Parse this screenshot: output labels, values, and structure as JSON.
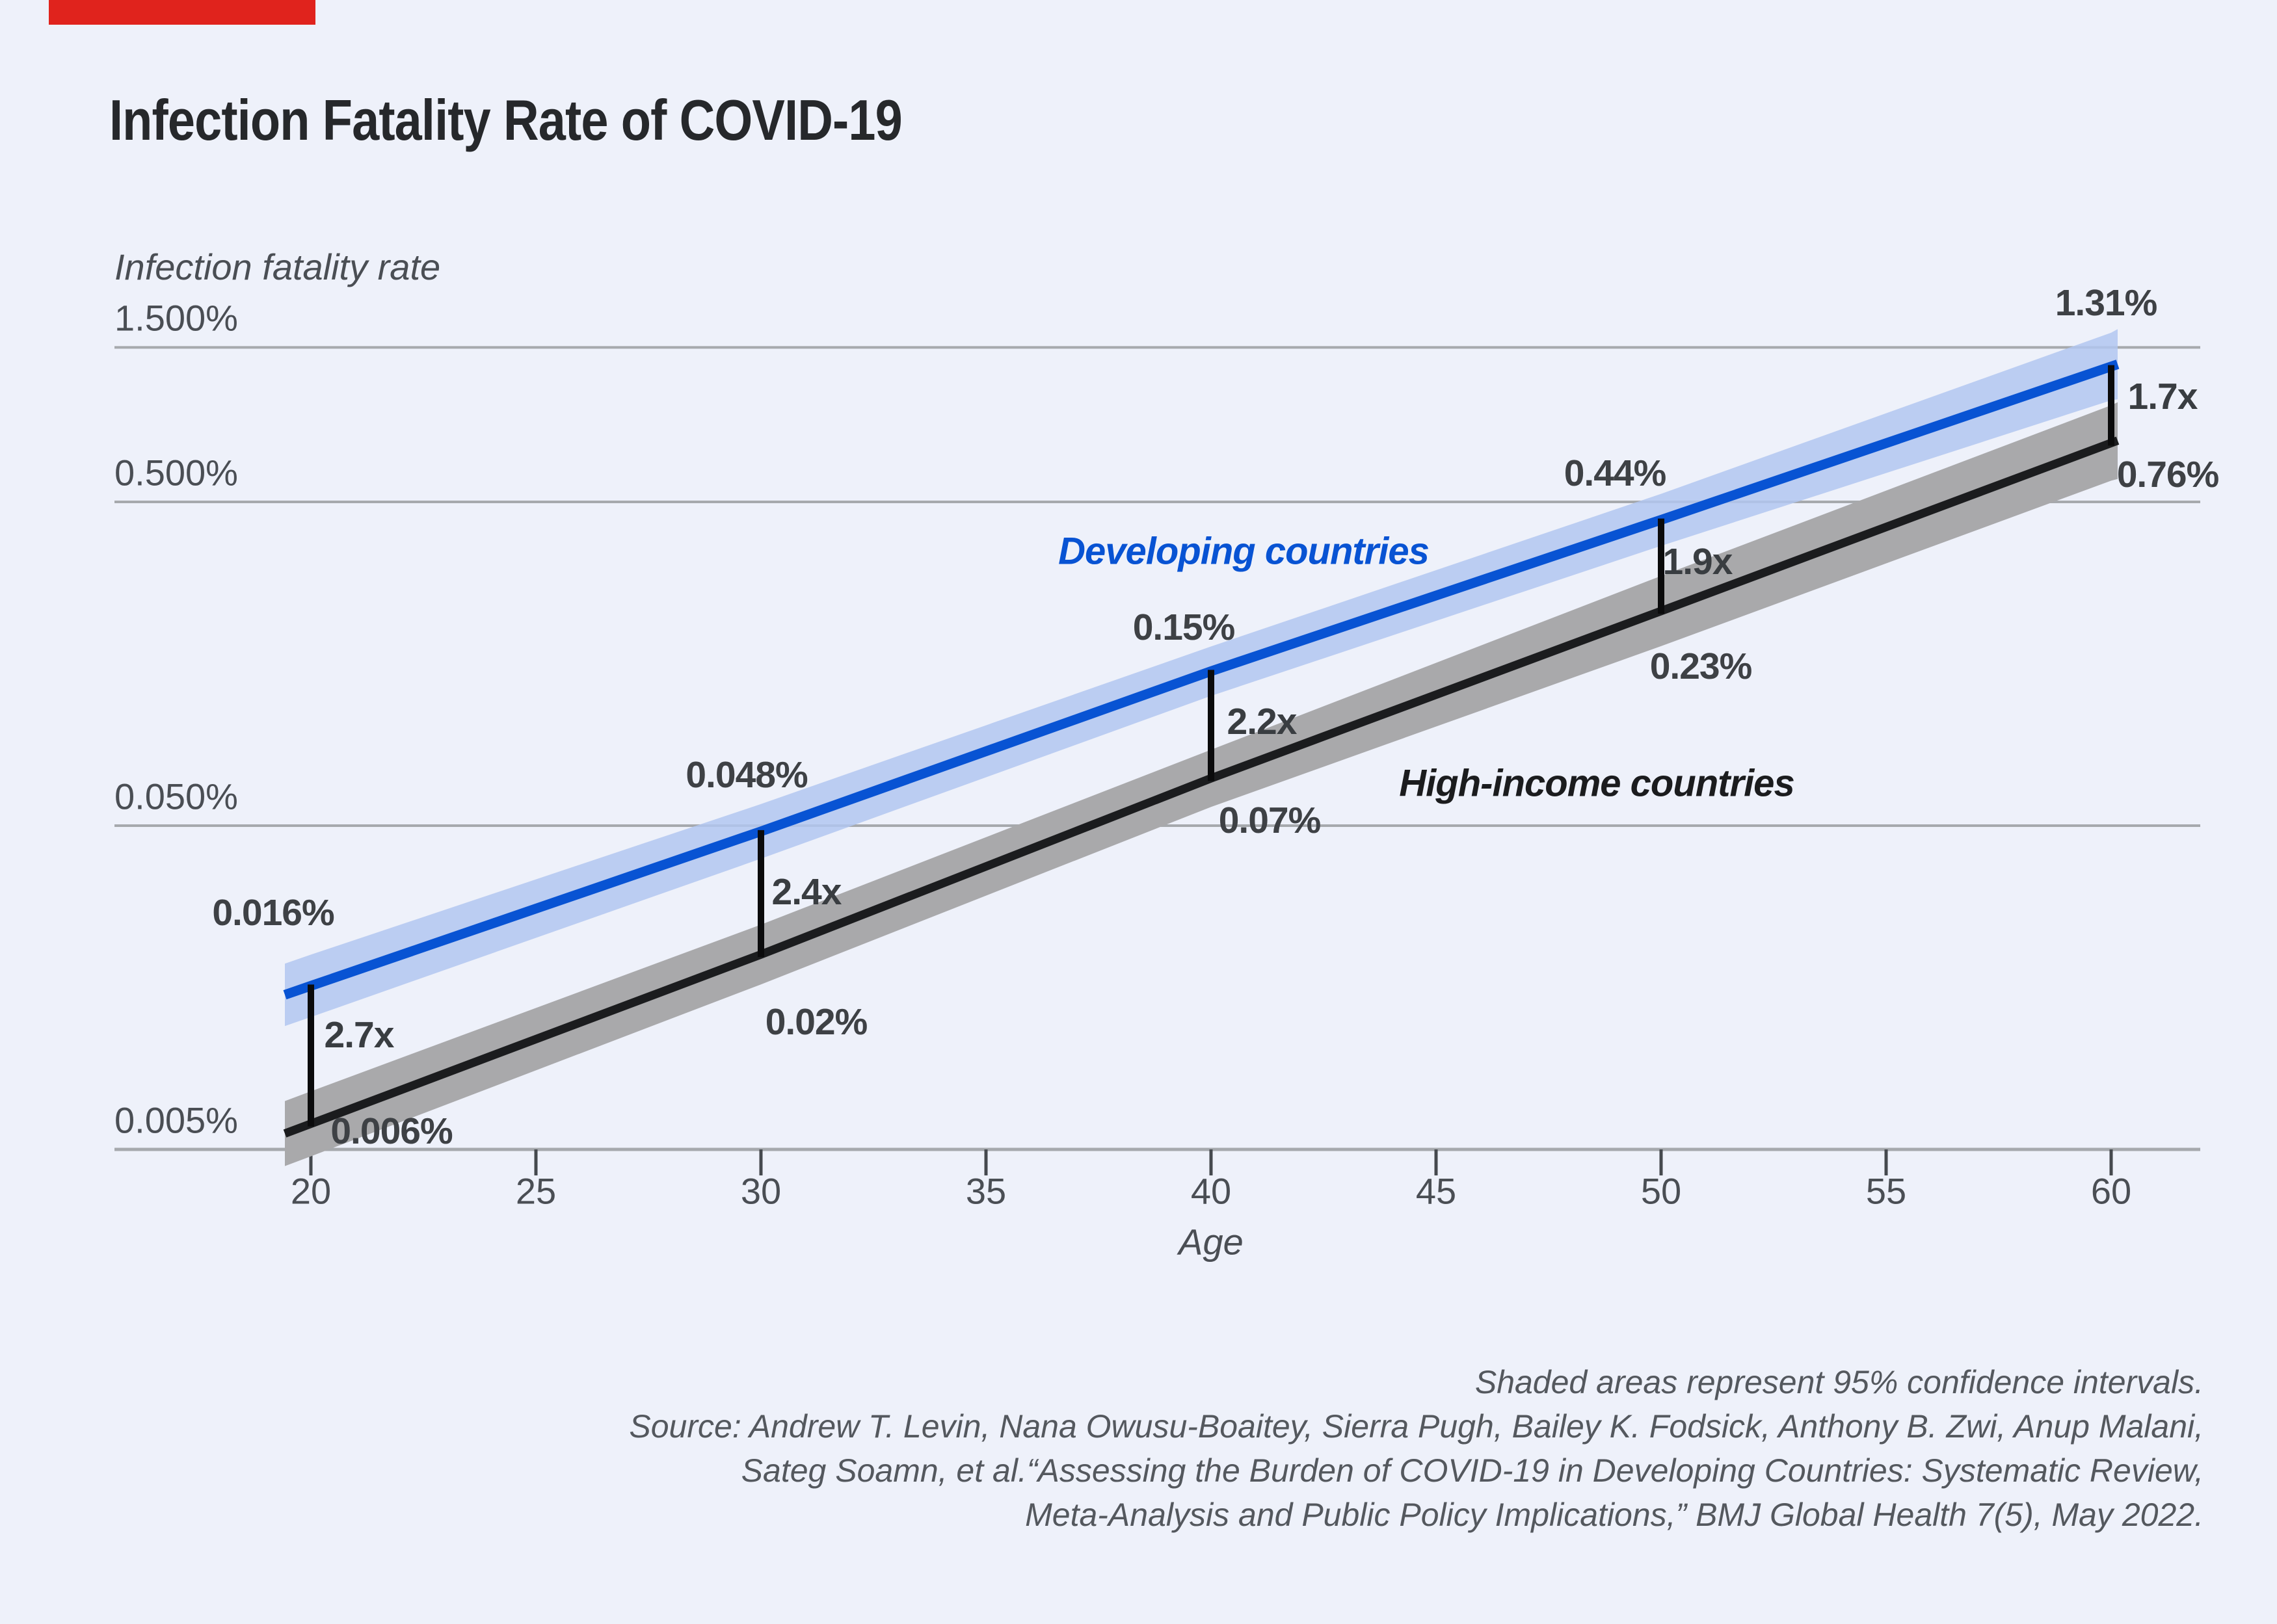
{
  "accent_bar": {
    "color": "#e0231d"
  },
  "title": "Infection Fatality Rate of COVID-19",
  "chart_data": {
    "type": "line",
    "yscale": "log",
    "grid": "horizontal",
    "x": [
      20,
      30,
      40,
      50,
      60
    ],
    "series": [
      {
        "name": "Developing countries",
        "color": "#0853d3",
        "band_color": "#b1c7f0",
        "values_pct": [
          0.016,
          0.048,
          0.15,
          0.44,
          1.31
        ],
        "value_labels": [
          "0.016%",
          "0.048%",
          "0.15%",
          "0.44%",
          "1.31%"
        ]
      },
      {
        "name": "High-income countries",
        "color": "#1b1c1e",
        "band_color": "#a9a9ab",
        "values_pct": [
          0.006,
          0.02,
          0.07,
          0.23,
          0.76
        ],
        "value_labels": [
          "0.006%",
          "0.02%",
          "0.07%",
          "0.23%",
          "0.76%"
        ]
      }
    ],
    "ratio_labels": [
      "2.7x",
      "2.4x",
      "2.2x",
      "1.9x",
      "1.7x"
    ],
    "y_axis": {
      "title": "Infection fatality rate",
      "tick_labels": [
        "1.500%",
        "0.500%",
        "0.050%",
        "0.005%"
      ],
      "tick_values_pct": [
        1.5,
        0.5,
        0.05,
        0.005
      ]
    },
    "x_axis": {
      "title": "Age",
      "tick_labels": [
        "20",
        "25",
        "30",
        "35",
        "40",
        "45",
        "50",
        "55",
        "60"
      ],
      "tick_values": [
        20,
        25,
        30,
        35,
        40,
        45,
        50,
        55,
        60
      ]
    },
    "ylim_pct": [
      0.005,
      1.5
    ]
  },
  "footnotes": [
    "Shaded areas represent 95% confidence intervals.",
    "Source: Andrew T. Levin, Nana Owusu-Boaitey, Sierra Pugh, Bailey K. Fodsick, Anthony B. Zwi, Anup Malani,",
    "Sateg Soamn, et al.“Assessing the Burden of COVID-19 in Developing Countries: Systematic Review,",
    "Meta-Analysis and Public Policy Implications,” BMJ Global Health 7(5), May 2022."
  ]
}
